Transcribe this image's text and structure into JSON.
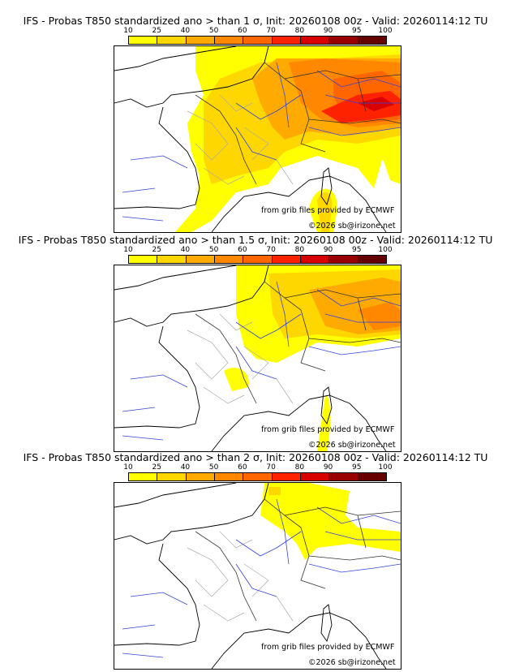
{
  "colorbar": {
    "ticks": [
      "10",
      "25",
      "40",
      "50",
      "60",
      "70",
      "80",
      "90",
      "95",
      "100"
    ],
    "colors": [
      "#ffff00",
      "#ffd700",
      "#ffaa00",
      "#ff8800",
      "#ff6600",
      "#ff2200",
      "#d90000",
      "#990000",
      "#660000"
    ]
  },
  "panels": [
    {
      "title": "IFS - Probas T850  standardized ano > than 1 σ, Init: 20260108 00z - Valid: 20260114:12 TU",
      "level": 1
    },
    {
      "title": "IFS - Probas T850  standardized ano > than 1.5 σ, Init: 20260108 00z - Valid: 20260114:12 TU",
      "level": 2
    },
    {
      "title": "IFS - Probas T850  standardized ano > than 2 σ, Init: 20260108 00z - Valid: 20260114:12 TU",
      "level": 3
    }
  ],
  "credits": {
    "source": "from grib files provided by ECMWF",
    "copyright": "©2026 sb@irizone.net"
  }
}
